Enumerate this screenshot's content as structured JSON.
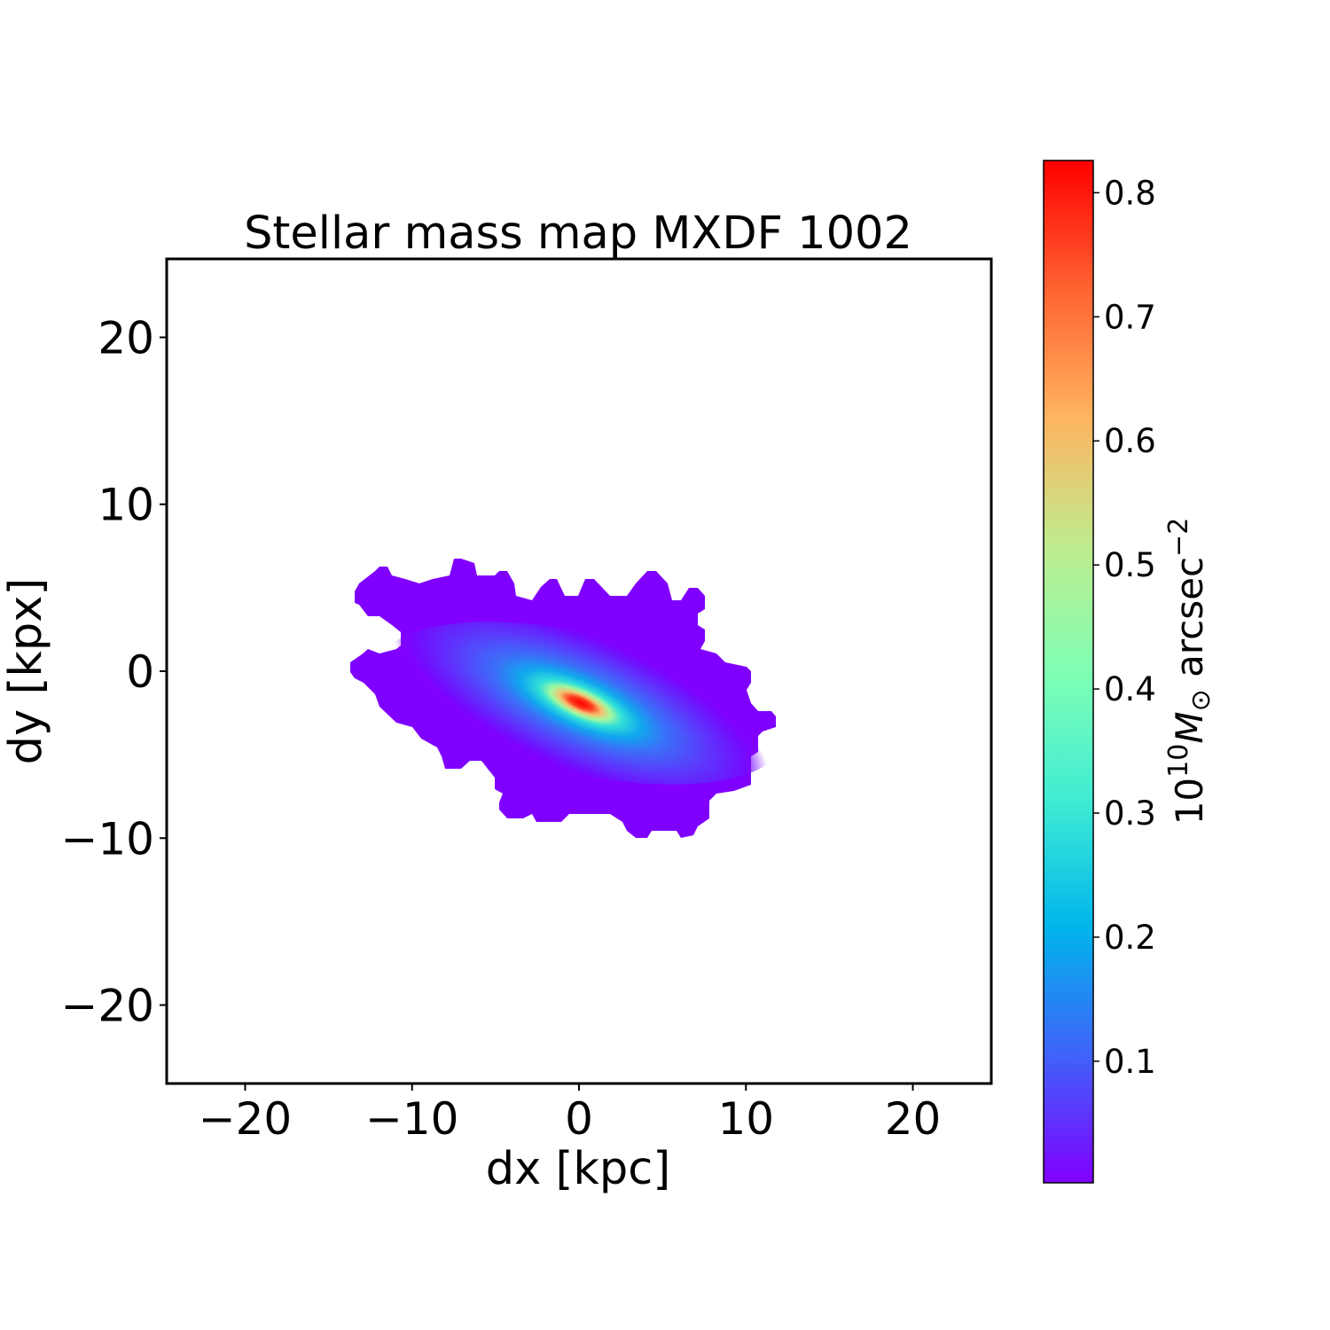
{
  "chart_data": {
    "type": "heatmap",
    "title": "Stellar mass map MXDF 1002",
    "xlabel": "dx [kpc]",
    "ylabel": "dy [kpx]",
    "xlim": [
      -24.7,
      24.7
    ],
    "ylim": [
      -24.7,
      24.7
    ],
    "xticks": [
      -20,
      -10,
      0,
      10,
      20
    ],
    "yticks": [
      -20,
      -10,
      0,
      10,
      20
    ],
    "xtick_labels": [
      "−20",
      "−10",
      "0",
      "10",
      "20"
    ],
    "ytick_labels": [
      "−20",
      "−10",
      "0",
      "10",
      "20"
    ],
    "grid": false,
    "colormap": "rainbow",
    "colors": [
      "#8000ff",
      "#4062fa",
      "#00b5eb",
      "#40ecd4",
      "#80ffb4",
      "#c0eb8d",
      "#ffb360",
      "#ff6231",
      "#ff0000"
    ],
    "background_color": "#8000ff",
    "peak": {
      "x": 0.1,
      "y": -1.9,
      "value": 0.826
    },
    "colorbar": {
      "clim": [
        0.002,
        0.826
      ],
      "ticks": [
        0.1,
        0.2,
        0.3,
        0.4,
        0.5,
        0.6,
        0.7,
        0.8
      ],
      "tick_labels": [
        "0.1",
        "0.2",
        "0.3",
        "0.4",
        "0.5",
        "0.6",
        "0.7",
        "0.8"
      ],
      "label": {
        "base": "10",
        "exp1": "10",
        "sym": "M",
        "sub": "⊙",
        "unit": " arcsec",
        "exp2": "−2"
      }
    }
  }
}
